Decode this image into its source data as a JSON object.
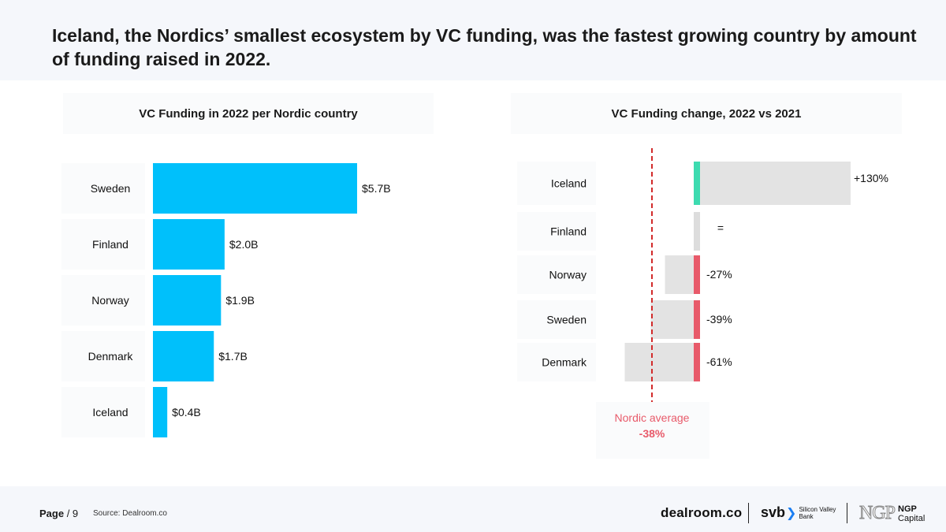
{
  "title": "Iceland, the Nordics’ smallest ecosystem by VC funding, was the fastest growing country by amount of funding raised in 2022.",
  "chart_data": [
    {
      "type": "bar",
      "orientation": "horizontal",
      "title": "VC Funding in 2022 per Nordic country",
      "categories": [
        "Sweden",
        "Finland",
        "Norway",
        "Denmark",
        "Iceland"
      ],
      "values": [
        5.7,
        2.0,
        1.9,
        1.7,
        0.4
      ],
      "labels": [
        "$5.7B",
        "$2.0B",
        "$1.9B",
        "$1.7B",
        "$0.4B"
      ],
      "unit": "$B",
      "color": "#00c0fb"
    },
    {
      "type": "bar",
      "orientation": "horizontal",
      "title": "VC Funding change, 2022 vs 2021",
      "categories": [
        "Iceland",
        "Finland",
        "Norway",
        "Sweden",
        "Denmark"
      ],
      "values": [
        130,
        0,
        -27,
        -39,
        -61
      ],
      "labels": [
        "+130%",
        "=",
        "-27%",
        "-39%",
        "-61%"
      ],
      "unit": "%",
      "colors": {
        "positive": "#3ddbb0",
        "negative": "#e85a6a",
        "neutral": "#dddddd",
        "background": "#e3e3e3"
      },
      "reference_line": {
        "label": "Nordic average",
        "value": -38,
        "value_label": "-38%",
        "color": "#d22b2b"
      }
    }
  ],
  "footer": {
    "page_label": "Page",
    "page_number": "/ 9",
    "source": "Source: Dealroom.co",
    "logos": {
      "dealroom": "dealroom.co",
      "svb": "svb",
      "svb_sub_line1": "Silicon Valley",
      "svb_sub_line2": "Bank",
      "ngp_mark": "NGP",
      "ngp_word_line1": "NGP",
      "ngp_word_line2": "Capital"
    }
  }
}
